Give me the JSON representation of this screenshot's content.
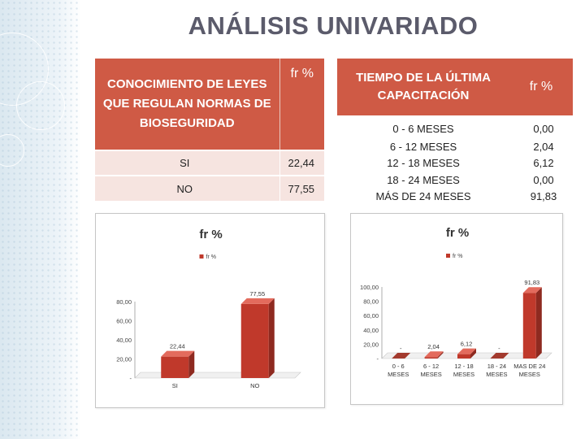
{
  "title": "ANÁLISIS UNIVARIADO",
  "table1": {
    "header_col1": "CONOCIMIENTO DE LEYES QUE REGULAN NORMAS DE BIOSEGURIDAD",
    "header_col2": "fr %",
    "rows": [
      {
        "label": "SI",
        "value": "22,44"
      },
      {
        "label": "NO",
        "value": "77,55"
      }
    ]
  },
  "table2": {
    "header_col1": "TIEMPO DE LA ÚLTIMA CAPACITACIÓN",
    "header_col2": "fr %",
    "rows": [
      {
        "label": "0 - 6 MESES",
        "value": "0,00"
      },
      {
        "label": "6 - 12 MESES",
        "value": "2,04"
      },
      {
        "label": "12 - 18 MESES",
        "value": "6,12"
      },
      {
        "label": "18 - 24 MESES",
        "value": "0,00"
      },
      {
        "label": "MÁS DE 24 MESES",
        "value": "91,83"
      }
    ]
  },
  "chart_data": [
    {
      "type": "bar",
      "title": "fr %",
      "legend": "fr %",
      "legend_position": "top",
      "categories": [
        "SI",
        "NO"
      ],
      "series": [
        {
          "name": "fr %",
          "values": [
            22.44,
            77.55
          ]
        }
      ],
      "data_labels": [
        "22,44",
        "77,55"
      ],
      "ylim": [
        0,
        80
      ],
      "yticks": [
        "-",
        "20,00",
        "40,00",
        "60,00",
        "80,00"
      ],
      "grid": false,
      "bar_color": "#c0392b"
    },
    {
      "type": "bar",
      "title": "fr %",
      "legend": "fr %",
      "legend_position": "top",
      "categories": [
        "0 - 6 MESES",
        "6 - 12 MESES",
        "12 - 18 MESES",
        "18 - 24 MESES",
        "MAS DE 24 MESES"
      ],
      "series": [
        {
          "name": "fr %",
          "values": [
            0,
            2.04,
            6.12,
            0,
            91.83
          ]
        }
      ],
      "data_labels": [
        "-",
        "2,04",
        "6,12",
        "-",
        "91,83"
      ],
      "ylim": [
        0,
        100
      ],
      "yticks": [
        "-",
        "20,00",
        "40,00",
        "60,00",
        "80,00",
        "100,00"
      ],
      "grid": false,
      "bar_color": "#c0392b"
    }
  ]
}
